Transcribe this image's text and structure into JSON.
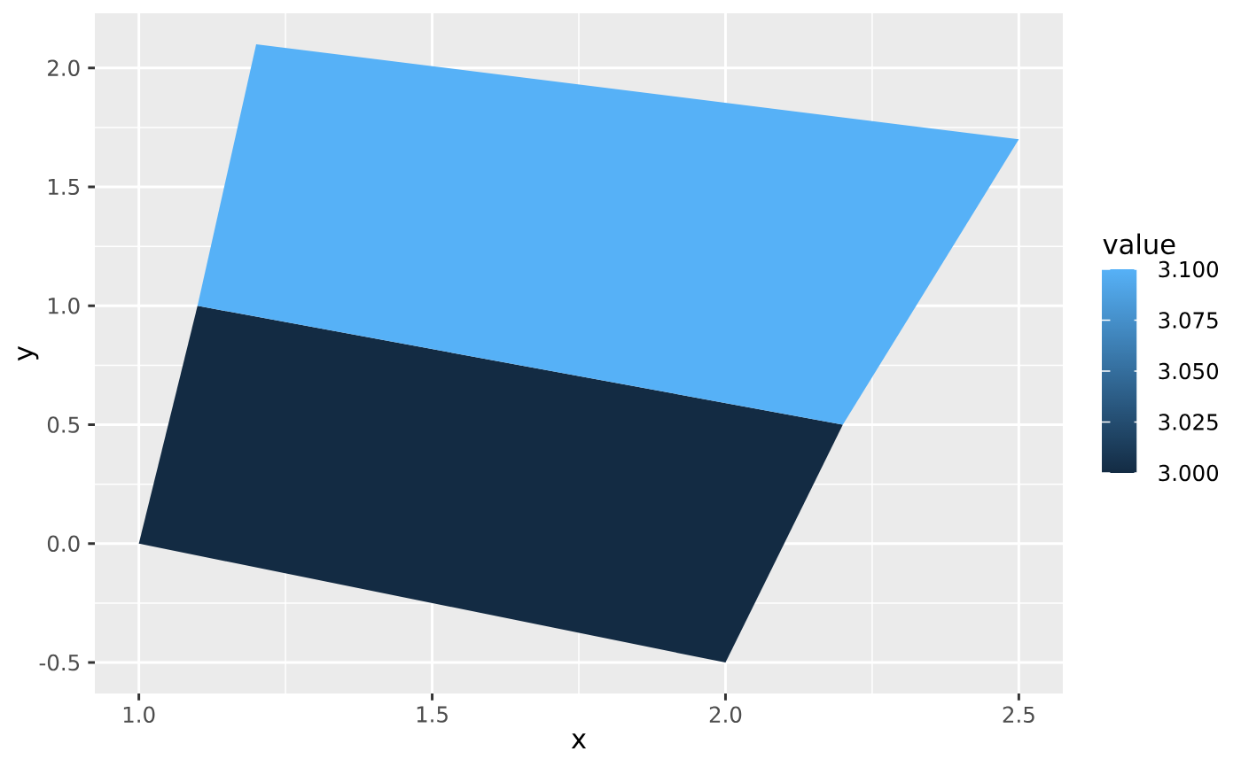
{
  "chart_data": {
    "type": "area",
    "xlabel": "x",
    "ylabel": "y",
    "clabel": "value",
    "series": [
      {
        "color": "#132b43",
        "x": [
          1.0,
          1.1,
          2.2,
          2.0
        ],
        "values": [
          0.0,
          1.0,
          0.5,
          -0.5
        ]
      },
      {
        "color": "#56b1f7",
        "x": [
          1.1,
          1.2,
          2.5,
          2.2
        ],
        "values": [
          1.0,
          2.1,
          1.7,
          0.5
        ]
      }
    ],
    "xlim": [
      0.925,
      2.575
    ],
    "ylim": [
      -0.63,
      2.23
    ],
    "xticks": [
      {
        "value": 1.0,
        "label": "1.0"
      },
      {
        "value": 1.5,
        "label": "1.5"
      },
      {
        "value": 2.0,
        "label": "2.0"
      },
      {
        "value": 2.5,
        "label": "2.5"
      }
    ],
    "yticks": [
      {
        "value": -0.5,
        "label": "-0.5"
      },
      {
        "value": 0.0,
        "label": "0.0"
      },
      {
        "value": 0.5,
        "label": "0.5"
      },
      {
        "value": 1.0,
        "label": "1.0"
      },
      {
        "value": 1.5,
        "label": "1.5"
      },
      {
        "value": 2.0,
        "label": "2.0"
      }
    ],
    "clim": [
      3.0,
      3.1
    ],
    "cticks": [
      {
        "value": 3.0,
        "label": "3.000"
      },
      {
        "value": 3.025,
        "label": "3.025"
      },
      {
        "value": 3.05,
        "label": "3.050"
      },
      {
        "value": 3.075,
        "label": "3.075"
      },
      {
        "value": 3.1,
        "label": "3.100"
      }
    ],
    "grid": true
  }
}
